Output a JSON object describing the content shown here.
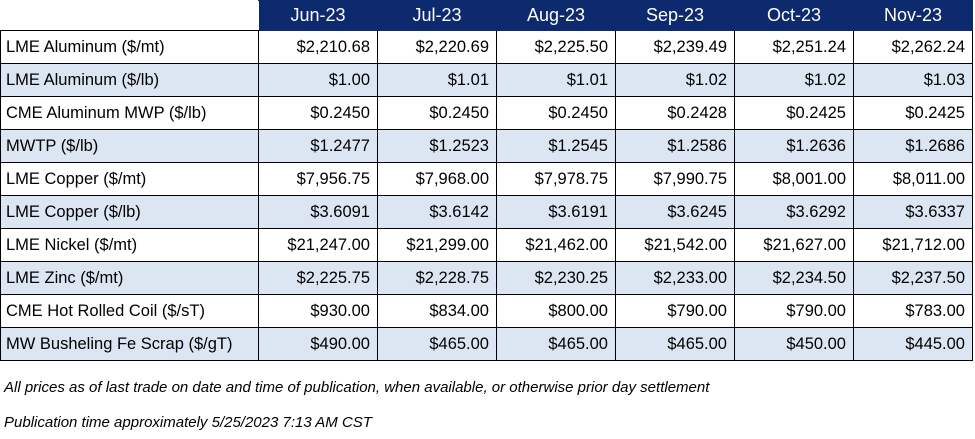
{
  "table": {
    "headers": [
      "",
      "Jun-23",
      "Jul-23",
      "Aug-23",
      "Sep-23",
      "Oct-23",
      "Nov-23"
    ],
    "rows": [
      {
        "label": "LME Aluminum ($/mt)",
        "values": [
          "$2,210.68",
          "$2,220.69",
          "$2,225.50",
          "$2,239.49",
          "$2,251.24",
          "$2,262.24"
        ]
      },
      {
        "label": "LME Aluminum ($/lb)",
        "values": [
          "$1.00",
          "$1.01",
          "$1.01",
          "$1.02",
          "$1.02",
          "$1.03"
        ]
      },
      {
        "label": "CME Aluminum MWP ($/lb)",
        "values": [
          "$0.2450",
          "$0.2450",
          "$0.2450",
          "$0.2428",
          "$0.2425",
          "$0.2425"
        ]
      },
      {
        "label": "MWTP ($/lb)",
        "values": [
          "$1.2477",
          "$1.2523",
          "$1.2545",
          "$1.2586",
          "$1.2636",
          "$1.2686"
        ]
      },
      {
        "label": "LME Copper ($/mt)",
        "values": [
          "$7,956.75",
          "$7,968.00",
          "$7,978.75",
          "$7,990.75",
          "$8,001.00",
          "$8,011.00"
        ]
      },
      {
        "label": "LME Copper ($/lb)",
        "values": [
          "$3.6091",
          "$3.6142",
          "$3.6191",
          "$3.6245",
          "$3.6292",
          "$3.6337"
        ]
      },
      {
        "label": "LME Nickel ($/mt)",
        "values": [
          "$21,247.00",
          "$21,299.00",
          "$21,462.00",
          "$21,542.00",
          "$21,627.00",
          "$21,712.00"
        ]
      },
      {
        "label": "LME Zinc ($/mt)",
        "values": [
          "$2,225.75",
          "$2,228.75",
          "$2,230.25",
          "$2,233.00",
          "$2,234.50",
          "$2,237.50"
        ]
      },
      {
        "label": "CME Hot Rolled Coil ($/sT)",
        "values": [
          "$930.00",
          "$834.00",
          "$800.00",
          "$790.00",
          "$790.00",
          "$783.00"
        ]
      },
      {
        "label": "MW Busheling Fe Scrap ($/gT)",
        "values": [
          "$490.00",
          "$465.00",
          "$465.00",
          "$465.00",
          "$450.00",
          "$445.00"
        ]
      }
    ]
  },
  "footnotes": {
    "note1": "All prices as of last trade on date and time of publication, when available, or otherwise prior day settlement",
    "note2": "Publication time approximately 5/25/2023 7:13 AM CST"
  },
  "colors": {
    "header_bg": "#0e2a6e",
    "alt_row_bg": "#dce6f2"
  }
}
